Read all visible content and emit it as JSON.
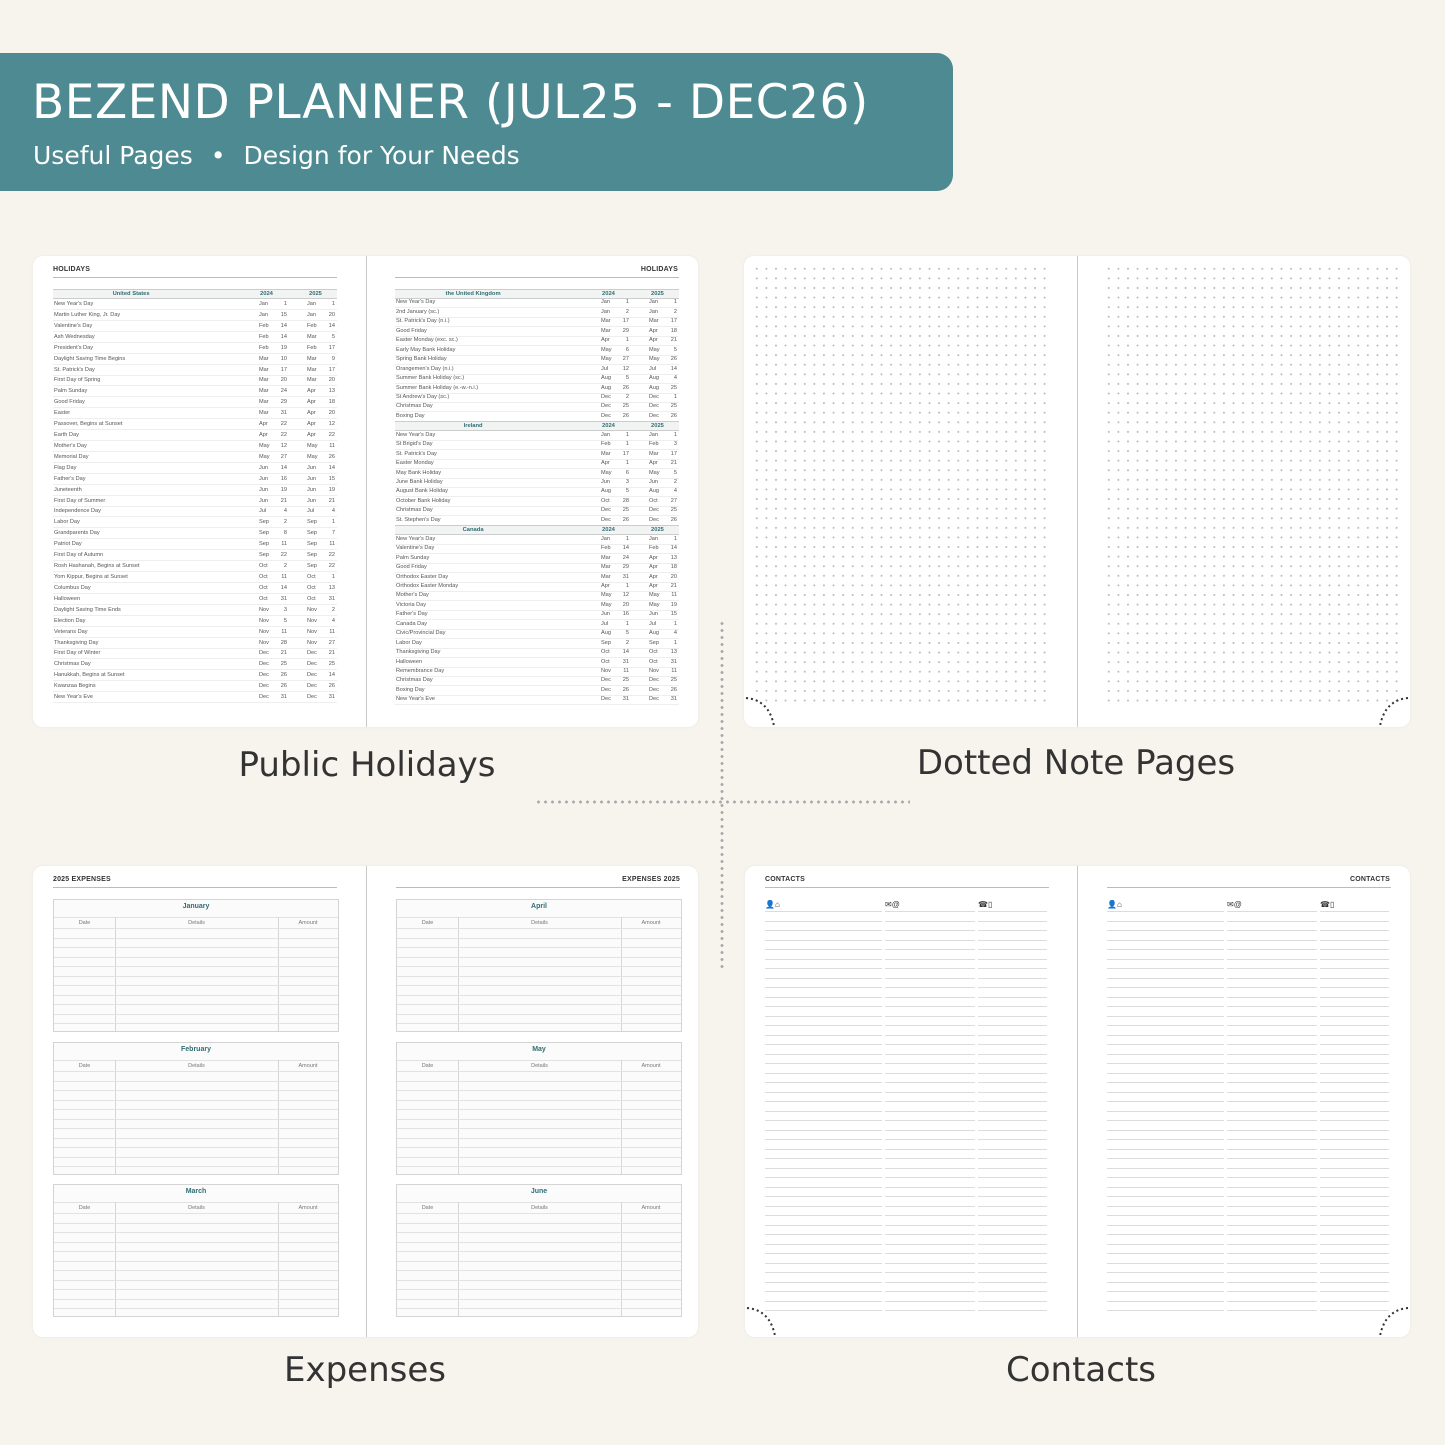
{
  "banner": {
    "title": "BEZEND PLANNER (JUL25 - DEC26)",
    "subtitle_left": "Useful Pages",
    "bullet": "•",
    "subtitle_right": "Design for Your Needs",
    "color": "#4e8a91"
  },
  "captions": {
    "holidays": "Public Holidays",
    "dotted": "Dotted Note Pages",
    "expenses": "Expenses",
    "contacts": "Contacts"
  },
  "holidays": {
    "heading": "HOLIDAYS",
    "us": {
      "country": "United States",
      "year1": "2024",
      "year2": "2025",
      "rows": [
        [
          "New Year's Day",
          "Jan",
          "1",
          "Jan",
          "1"
        ],
        [
          "Martin Luther King, Jr. Day",
          "Jan",
          "15",
          "Jan",
          "20"
        ],
        [
          "Valentine's Day",
          "Feb",
          "14",
          "Feb",
          "14"
        ],
        [
          "Ash Wednesday",
          "Feb",
          "14",
          "Mar",
          "5"
        ],
        [
          "President's Day",
          "Feb",
          "19",
          "Feb",
          "17"
        ],
        [
          "Daylight Saving Time Begins",
          "Mar",
          "10",
          "Mar",
          "9"
        ],
        [
          "St. Patrick's Day",
          "Mar",
          "17",
          "Mar",
          "17"
        ],
        [
          "First Day of Spring",
          "Mar",
          "20",
          "Mar",
          "20"
        ],
        [
          "Palm Sunday",
          "Mar",
          "24",
          "Apr",
          "13"
        ],
        [
          "Good Friday",
          "Mar",
          "29",
          "Apr",
          "18"
        ],
        [
          "Easter",
          "Mar",
          "31",
          "Apr",
          "20"
        ],
        [
          "Passover, Begins at Sunset",
          "Apr",
          "22",
          "Apr",
          "12"
        ],
        [
          "Earth Day",
          "Apr",
          "22",
          "Apr",
          "22"
        ],
        [
          "Mother's Day",
          "May",
          "12",
          "May",
          "11"
        ],
        [
          "Memorial Day",
          "May",
          "27",
          "May",
          "26"
        ],
        [
          "Flag Day",
          "Jun",
          "14",
          "Jun",
          "14"
        ],
        [
          "Father's Day",
          "Jun",
          "16",
          "Jun",
          "15"
        ],
        [
          "Juneteenth",
          "Jun",
          "19",
          "Jun",
          "19"
        ],
        [
          "First Day of Summer",
          "Jun",
          "21",
          "Jun",
          "21"
        ],
        [
          "Independence Day",
          "Jul",
          "4",
          "Jul",
          "4"
        ],
        [
          "Labor Day",
          "Sep",
          "2",
          "Sep",
          "1"
        ],
        [
          "Grandparents Day",
          "Sep",
          "8",
          "Sep",
          "7"
        ],
        [
          "Patriot Day",
          "Sep",
          "11",
          "Sep",
          "11"
        ],
        [
          "First Day of Autumn",
          "Sep",
          "22",
          "Sep",
          "22"
        ],
        [
          "Rosh Hashanah, Begins at Sunset",
          "Oct",
          "2",
          "Sep",
          "22"
        ],
        [
          "Yom Kippur, Begins at Sunset",
          "Oct",
          "11",
          "Oct",
          "1"
        ],
        [
          "Columbus Day",
          "Oct",
          "14",
          "Oct",
          "13"
        ],
        [
          "Halloween",
          "Oct",
          "31",
          "Oct",
          "31"
        ],
        [
          "Daylight Saving Time Ends",
          "Nov",
          "3",
          "Nov",
          "2"
        ],
        [
          "Election Day",
          "Nov",
          "5",
          "Nov",
          "4"
        ],
        [
          "Veterans Day",
          "Nov",
          "11",
          "Nov",
          "11"
        ],
        [
          "Thanksgiving Day",
          "Nov",
          "28",
          "Nov",
          "27"
        ],
        [
          "First Day of Winter",
          "Dec",
          "21",
          "Dec",
          "21"
        ],
        [
          "Christmas Day",
          "Dec",
          "25",
          "Dec",
          "25"
        ],
        [
          "Hanukkah, Begins at Sunset",
          "Dec",
          "26",
          "Dec",
          "14"
        ],
        [
          "Kwanzaa Begins",
          "Dec",
          "26",
          "Dec",
          "26"
        ],
        [
          "New Year's Eve",
          "Dec",
          "31",
          "Dec",
          "31"
        ]
      ]
    },
    "right_sections": [
      {
        "country": "the United Kingdom",
        "year1": "2024",
        "year2": "2025",
        "rows": [
          [
            "New Year's Day",
            "Jan",
            "1",
            "Jan",
            "1"
          ],
          [
            "2nd January (sc.)",
            "Jan",
            "2",
            "Jan",
            "2"
          ],
          [
            "St. Patrick's Day (n.i.)",
            "Mar",
            "17",
            "Mar",
            "17"
          ],
          [
            "Good Friday",
            "Mar",
            "29",
            "Apr",
            "18"
          ],
          [
            "Easter Monday (exc. sc.)",
            "Apr",
            "1",
            "Apr",
            "21"
          ],
          [
            "Early May Bank Holiday",
            "May",
            "6",
            "May",
            "5"
          ],
          [
            "Spring Bank Holiday",
            "May",
            "27",
            "May",
            "26"
          ],
          [
            "Orangemen's Day (n.i.)",
            "Jul",
            "12",
            "Jul",
            "14"
          ],
          [
            "Summer Bank Holiday (sc.)",
            "Aug",
            "5",
            "Aug",
            "4"
          ],
          [
            "Summer Bank Holiday (e.-w.-n.i.)",
            "Aug",
            "26",
            "Aug",
            "25"
          ],
          [
            "St Andrew's Day (sc.)",
            "Dec",
            "2",
            "Dec",
            "1"
          ],
          [
            "Christmas Day",
            "Dec",
            "25",
            "Dec",
            "25"
          ],
          [
            "Boxing Day",
            "Dec",
            "26",
            "Dec",
            "26"
          ]
        ]
      },
      {
        "country": "Ireland",
        "year1": "2024",
        "year2": "2025",
        "rows": [
          [
            "New Year's Day",
            "Jan",
            "1",
            "Jan",
            "1"
          ],
          [
            "St Brigid's Day",
            "Feb",
            "1",
            "Feb",
            "3"
          ],
          [
            "St. Patrick's Day",
            "Mar",
            "17",
            "Mar",
            "17"
          ],
          [
            "Easter Monday",
            "Apr",
            "1",
            "Apr",
            "21"
          ],
          [
            "May Bank Holiday",
            "May",
            "6",
            "May",
            "5"
          ],
          [
            "June Bank Holiday",
            "Jun",
            "3",
            "Jun",
            "2"
          ],
          [
            "August Bank Holiday",
            "Aug",
            "5",
            "Aug",
            "4"
          ],
          [
            "October Bank Holiday",
            "Oct",
            "28",
            "Oct",
            "27"
          ],
          [
            "Christmas Day",
            "Dec",
            "25",
            "Dec",
            "25"
          ],
          [
            "St. Stephen's Day",
            "Dec",
            "26",
            "Dec",
            "26"
          ]
        ]
      },
      {
        "country": "Canada",
        "year1": "2024",
        "year2": "2025",
        "rows": [
          [
            "New Year's Day",
            "Jan",
            "1",
            "Jan",
            "1"
          ],
          [
            "Valentine's Day",
            "Feb",
            "14",
            "Feb",
            "14"
          ],
          [
            "Palm Sunday",
            "Mar",
            "24",
            "Apr",
            "13"
          ],
          [
            "Good Friday",
            "Mar",
            "29",
            "Apr",
            "18"
          ],
          [
            "Orthodox Easter Day",
            "Mar",
            "31",
            "Apr",
            "20"
          ],
          [
            "Orthodox Easter Monday",
            "Apr",
            "1",
            "Apr",
            "21"
          ],
          [
            "Mother's Day",
            "May",
            "12",
            "May",
            "11"
          ],
          [
            "Victoria Day",
            "May",
            "20",
            "May",
            "19"
          ],
          [
            "Father's Day",
            "Jun",
            "16",
            "Jun",
            "15"
          ],
          [
            "Canada Day",
            "Jul",
            "1",
            "Jul",
            "1"
          ],
          [
            "Civic/Provincial Day",
            "Aug",
            "5",
            "Aug",
            "4"
          ],
          [
            "Labor Day",
            "Sep",
            "2",
            "Sep",
            "1"
          ],
          [
            "Thanksgiving Day",
            "Oct",
            "14",
            "Oct",
            "13"
          ],
          [
            "Halloween",
            "Oct",
            "31",
            "Oct",
            "31"
          ],
          [
            "Remembrance Day",
            "Nov",
            "11",
            "Nov",
            "11"
          ],
          [
            "Christmas Day",
            "Dec",
            "25",
            "Dec",
            "25"
          ],
          [
            "Boxing Day",
            "Dec",
            "26",
            "Dec",
            "26"
          ],
          [
            "New Year's Eve",
            "Dec",
            "31",
            "Dec",
            "31"
          ]
        ]
      }
    ]
  },
  "expenses": {
    "left_heading": "2025 EXPENSES",
    "right_heading": "EXPENSES 2025",
    "columns": [
      "Date",
      "Details",
      "Amount"
    ],
    "left_months": [
      "January",
      "February",
      "March"
    ],
    "right_months": [
      "April",
      "May",
      "June"
    ]
  },
  "contacts": {
    "heading": "CONTACTS",
    "column_icons": [
      {
        "icon": "person-home-icon",
        "glyph": "👤⌂"
      },
      {
        "icon": "mail-at-icon",
        "glyph": "✉@"
      },
      {
        "icon": "phone-mobile-icon",
        "glyph": "☎▯"
      }
    ]
  }
}
